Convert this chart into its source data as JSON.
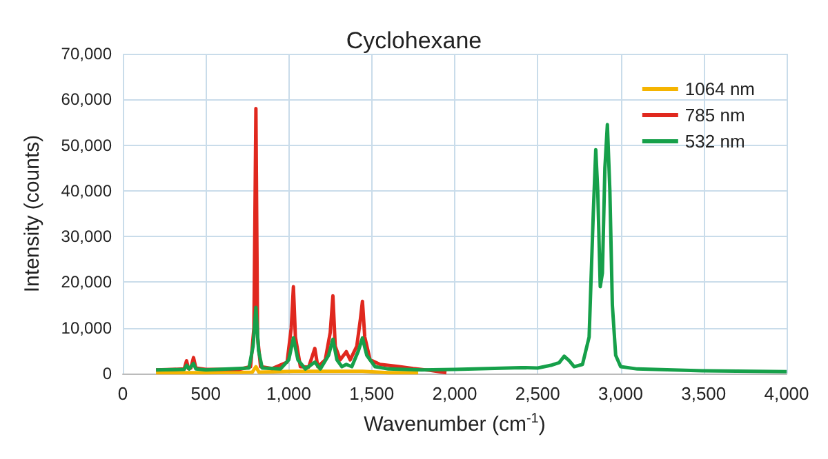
{
  "chart_data": {
    "type": "line",
    "title": "Cyclohexane",
    "xlabel": "Wavenumber (cm$^{-1}$)",
    "ylabel": "Intensity (counts)",
    "xlim": [
      0,
      4000
    ],
    "xticks": [
      0,
      500,
      {
        "value": 1000,
        "label": "1,000"
      },
      {
        "value": 1500,
        "label": "1,500"
      },
      {
        "value": 2000,
        "label": "2,000"
      },
      {
        "value": 2500,
        "label": "2,500"
      },
      {
        "value": 3000,
        "label": "3,000"
      },
      {
        "value": 3500,
        "label": "3,500"
      },
      {
        "value": 4000,
        "label": "4,000"
      }
    ],
    "ylim": [
      0,
      70000
    ],
    "yticks": [
      0,
      {
        "value": 10000,
        "label": "10,000"
      },
      {
        "value": 20000,
        "label": "20,000"
      },
      {
        "value": 30000,
        "label": "30,000"
      },
      {
        "value": 40000,
        "label": "40,000"
      },
      {
        "value": 50000,
        "label": "50,000"
      },
      {
        "value": 60000,
        "label": "60,000"
      },
      {
        "value": 70000,
        "label": "70,000"
      }
    ],
    "grid": true,
    "legend": "top right",
    "marker": "none",
    "line_style": "solid",
    "series": [
      {
        "name": "1064 nm",
        "color": "#f5b400",
        "x": [
          200,
          500,
          780,
          802,
          820,
          1028,
          1266,
          1444,
          1600,
          1780
        ],
        "values": [
          200,
          200,
          300,
          1500,
          300,
          500,
          500,
          500,
          200,
          200
        ]
      },
      {
        "name": "785 nm",
        "color": "#e0281e",
        "x": [
          200,
          300,
          370,
          384,
          395,
          410,
          426,
          440,
          500,
          700,
          770,
          790,
          802,
          812,
          830,
          900,
          990,
          1015,
          1028,
          1040,
          1070,
          1120,
          1157,
          1175,
          1220,
          1250,
          1266,
          1280,
          1310,
          1347,
          1370,
          1410,
          1432,
          1444,
          1458,
          1490,
          1550,
          1650,
          1750,
          1850,
          1950
        ],
        "values": [
          800,
          900,
          1000,
          2800,
          1100,
          1200,
          3500,
          1200,
          900,
          900,
          1500,
          10000,
          58000,
          8000,
          1500,
          1100,
          2500,
          10000,
          19000,
          8000,
          1500,
          1400,
          5500,
          1500,
          3000,
          9000,
          17000,
          6000,
          3000,
          4800,
          3000,
          6000,
          12000,
          15800,
          8000,
          3000,
          2000,
          1600,
          1100,
          700,
          200
        ]
      },
      {
        "name": "532 nm",
        "color": "#16a04a",
        "x": [
          200,
          370,
          385,
          400,
          426,
          440,
          500,
          760,
          785,
          802,
          818,
          840,
          950,
          1000,
          1028,
          1055,
          1100,
          1157,
          1190,
          1240,
          1266,
          1290,
          1320,
          1347,
          1380,
          1420,
          1444,
          1470,
          1520,
          1600,
          1800,
          2000,
          2200,
          2400,
          2500,
          2580,
          2630,
          2660,
          2690,
          2720,
          2770,
          2810,
          2835,
          2850,
          2862,
          2877,
          2890,
          2905,
          2920,
          2935,
          2950,
          2970,
          3000,
          3100,
          3500,
          4000
        ],
        "values": [
          800,
          900,
          1800,
          1000,
          2200,
          1000,
          800,
          1200,
          6000,
          14500,
          5000,
          1200,
          1000,
          3000,
          7800,
          3000,
          1000,
          2500,
          1000,
          4000,
          7500,
          3000,
          1500,
          2000,
          1500,
          5000,
          7800,
          4000,
          1500,
          1000,
          800,
          900,
          1100,
          1300,
          1200,
          1800,
          2400,
          3800,
          2800,
          1500,
          2000,
          8000,
          35000,
          49000,
          40000,
          19000,
          22000,
          45000,
          54500,
          40000,
          15000,
          4000,
          1500,
          1000,
          600,
          400
        ]
      }
    ]
  }
}
